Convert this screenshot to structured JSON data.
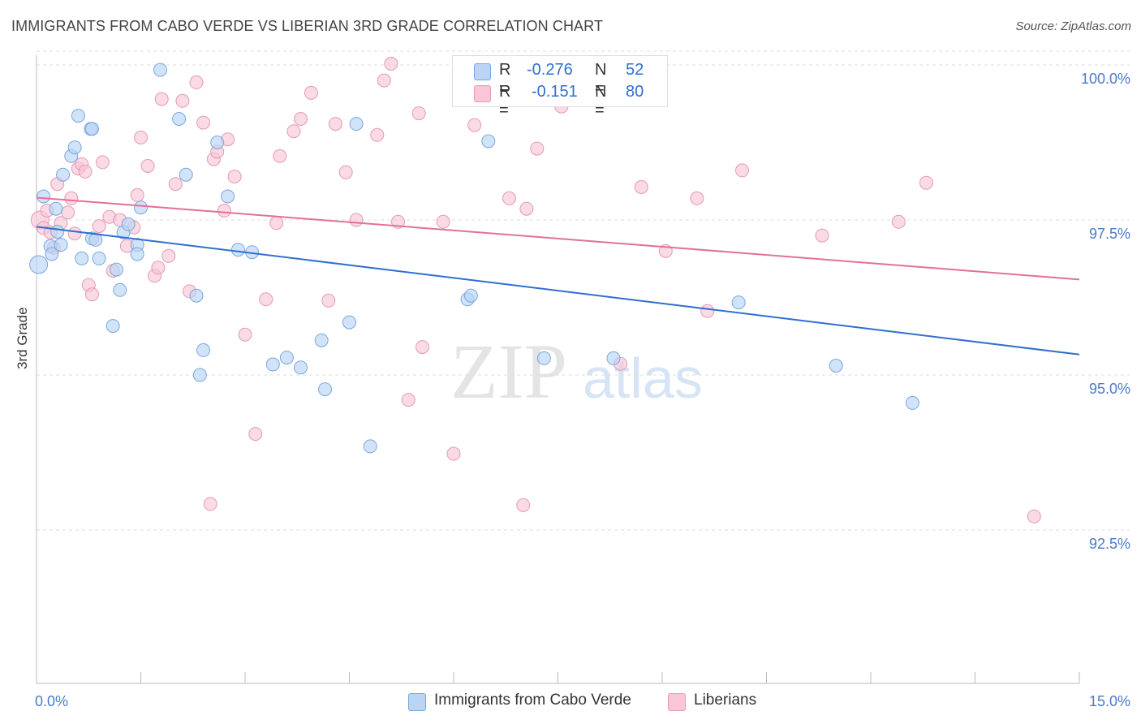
{
  "title": "IMMIGRANTS FROM CABO VERDE VS LIBERIAN 3RD GRADE CORRELATION CHART",
  "source": "Source: ZipAtlas.com",
  "watermark": {
    "zip": "ZIP",
    "atlas": "atlas"
  },
  "legend": {
    "rows": [
      {
        "r_label": "R =",
        "r_value": "-0.276",
        "n_label": "N =",
        "n_value": "52"
      },
      {
        "r_label": "R =",
        "r_value": "-0.151",
        "n_label": "N =",
        "n_value": "80"
      }
    ]
  },
  "colors": {
    "blue_fill": "#b9d4f5",
    "blue_stroke": "#7aa7dc",
    "blue_line": "#2f6fd0",
    "pink_fill": "#f8c6d6",
    "pink_stroke": "#e59ab4",
    "pink_line": "#e2709a",
    "tick_label": "#4a7ac9",
    "grid": "#dddddd"
  },
  "chart_data": {
    "type": "scatter",
    "title": "IMMIGRANTS FROM CABO VERDE VS LIBERIAN 3RD GRADE CORRELATION CHART",
    "xlabel": "",
    "ylabel": "3rd Grade",
    "xlim": [
      0,
      15
    ],
    "ylim": [
      90.5,
      100.4
    ],
    "x_tick_labels": [
      "0.0%",
      "15.0%"
    ],
    "y_ticks": [
      92.5,
      95.0,
      97.5,
      100.0
    ],
    "y_tick_labels": [
      "92.5%",
      "95.0%",
      "97.5%",
      "100.0%"
    ],
    "grid": true,
    "legend_position": "bottom",
    "series": [
      {
        "name": "Immigrants from Cabo Verde",
        "color": "#b9d4f5",
        "r": -0.276,
        "n": 52,
        "trend": {
          "x": [
            0.0,
            15.0
          ],
          "y": [
            97.39,
            95.33
          ]
        },
        "points": [
          [
            0.03,
            96.78
          ],
          [
            0.1,
            97.88
          ],
          [
            0.2,
            97.08
          ],
          [
            0.22,
            96.95
          ],
          [
            0.28,
            97.68
          ],
          [
            0.3,
            97.31
          ],
          [
            0.35,
            97.1
          ],
          [
            0.38,
            98.23
          ],
          [
            0.5,
            98.53
          ],
          [
            0.55,
            98.67
          ],
          [
            0.6,
            99.18
          ],
          [
            0.65,
            96.88
          ],
          [
            0.78,
            98.97
          ],
          [
            0.8,
            97.2
          ],
          [
            0.85,
            97.18
          ],
          [
            0.9,
            96.88
          ],
          [
            1.1,
            95.79
          ],
          [
            1.15,
            96.7
          ],
          [
            1.2,
            96.37
          ],
          [
            1.25,
            97.3
          ],
          [
            1.32,
            97.43
          ],
          [
            1.45,
            97.1
          ],
          [
            1.5,
            97.7
          ],
          [
            1.78,
            99.92
          ],
          [
            2.05,
            99.13
          ],
          [
            2.15,
            98.23
          ],
          [
            2.3,
            96.28
          ],
          [
            2.35,
            95.0
          ],
          [
            2.4,
            95.4
          ],
          [
            2.6,
            98.75
          ],
          [
            2.75,
            97.88
          ],
          [
            2.9,
            97.02
          ],
          [
            3.1,
            96.98
          ],
          [
            3.4,
            95.17
          ],
          [
            3.6,
            95.28
          ],
          [
            3.8,
            95.12
          ],
          [
            4.1,
            95.56
          ],
          [
            4.15,
            94.77
          ],
          [
            4.5,
            95.85
          ],
          [
            4.6,
            99.05
          ],
          [
            4.8,
            93.85
          ],
          [
            6.2,
            96.22
          ],
          [
            6.25,
            96.28
          ],
          [
            6.5,
            98.77
          ],
          [
            7.3,
            95.27
          ],
          [
            7.45,
            99.98
          ],
          [
            8.3,
            95.27
          ],
          [
            10.1,
            96.17
          ],
          [
            11.5,
            95.15
          ],
          [
            12.6,
            94.55
          ],
          [
            0.8,
            98.97
          ],
          [
            1.45,
            96.95
          ]
        ]
      },
      {
        "name": "Liberians",
        "color": "#f8c6d6",
        "r": -0.151,
        "n": 80,
        "trend": {
          "x": [
            0.0,
            15.0
          ],
          "y": [
            97.86,
            96.54
          ]
        },
        "points": [
          [
            0.05,
            97.5
          ],
          [
            0.1,
            97.37
          ],
          [
            0.15,
            97.65
          ],
          [
            0.2,
            97.3
          ],
          [
            0.25,
            97.05
          ],
          [
            0.3,
            98.08
          ],
          [
            0.35,
            97.45
          ],
          [
            0.45,
            97.62
          ],
          [
            0.5,
            97.85
          ],
          [
            0.55,
            97.28
          ],
          [
            0.6,
            98.33
          ],
          [
            0.65,
            98.4
          ],
          [
            0.7,
            98.28
          ],
          [
            0.75,
            96.45
          ],
          [
            0.8,
            96.3
          ],
          [
            0.9,
            97.4
          ],
          [
            0.95,
            98.43
          ],
          [
            1.05,
            97.55
          ],
          [
            1.1,
            96.68
          ],
          [
            1.2,
            97.5
          ],
          [
            1.3,
            97.08
          ],
          [
            1.4,
            97.38
          ],
          [
            1.45,
            97.9
          ],
          [
            1.5,
            98.83
          ],
          [
            1.6,
            98.37
          ],
          [
            1.7,
            96.6
          ],
          [
            1.75,
            96.73
          ],
          [
            1.8,
            99.45
          ],
          [
            1.9,
            96.92
          ],
          [
            2.0,
            98.08
          ],
          [
            2.1,
            99.42
          ],
          [
            2.2,
            96.35
          ],
          [
            2.3,
            99.72
          ],
          [
            2.4,
            99.07
          ],
          [
            2.5,
            92.92
          ],
          [
            2.55,
            98.48
          ],
          [
            2.6,
            98.6
          ],
          [
            2.7,
            97.65
          ],
          [
            2.75,
            98.8
          ],
          [
            2.85,
            98.2
          ],
          [
            3.0,
            95.65
          ],
          [
            3.15,
            94.05
          ],
          [
            3.3,
            96.22
          ],
          [
            3.45,
            97.45
          ],
          [
            3.5,
            98.53
          ],
          [
            3.7,
            98.93
          ],
          [
            3.8,
            99.13
          ],
          [
            3.95,
            99.55
          ],
          [
            4.2,
            96.2
          ],
          [
            4.3,
            99.05
          ],
          [
            4.45,
            98.27
          ],
          [
            4.6,
            97.5
          ],
          [
            4.9,
            98.87
          ],
          [
            5.0,
            99.75
          ],
          [
            5.1,
            100.02
          ],
          [
            5.2,
            97.47
          ],
          [
            5.35,
            94.6
          ],
          [
            5.5,
            99.22
          ],
          [
            5.55,
            95.45
          ],
          [
            5.85,
            97.47
          ],
          [
            6.0,
            93.73
          ],
          [
            6.1,
            100.02
          ],
          [
            6.3,
            99.03
          ],
          [
            6.5,
            99.52
          ],
          [
            6.6,
            99.53
          ],
          [
            6.8,
            97.85
          ],
          [
            7.0,
            92.9
          ],
          [
            7.05,
            97.68
          ],
          [
            7.2,
            98.65
          ],
          [
            7.55,
            99.33
          ],
          [
            8.4,
            95.18
          ],
          [
            8.7,
            98.03
          ],
          [
            9.05,
            97.0
          ],
          [
            9.5,
            97.85
          ],
          [
            9.65,
            96.03
          ],
          [
            10.15,
            98.3
          ],
          [
            11.3,
            97.25
          ],
          [
            12.4,
            97.47
          ],
          [
            12.8,
            98.1
          ],
          [
            14.35,
            92.72
          ]
        ]
      }
    ]
  },
  "bottom_legend": {
    "items": [
      {
        "label": "Immigrants from Cabo Verde"
      },
      {
        "label": "Liberians"
      }
    ]
  }
}
